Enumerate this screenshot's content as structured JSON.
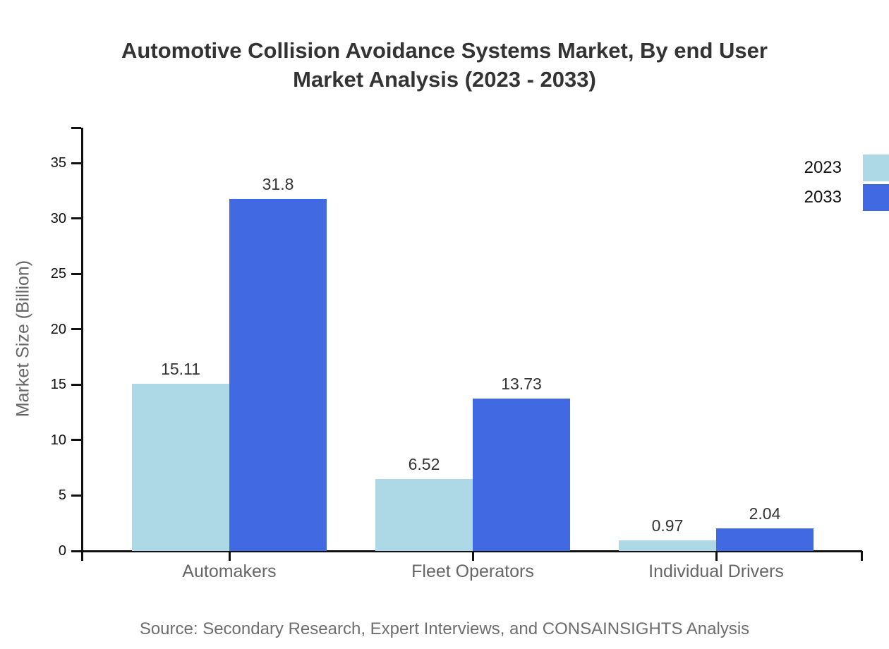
{
  "title": {
    "lines": [
      "Automotive Collision Avoidance Systems Market, By end User",
      "Market Analysis (2023 - 2033)"
    ]
  },
  "source_note": "Source: Secondary Research, Expert Interviews, and CONSAINSIGHTS Analysis",
  "colors": {
    "series_2023": "#ADD8E6",
    "series_2033": "#4169E1",
    "axis": "#111111",
    "title_text": "#333333",
    "muted_text": "#666666",
    "value_text": "#333333"
  },
  "chart_data": {
    "type": "bar",
    "title": "Automotive Collision Avoidance Systems Market, By end User Market Analysis (2023 - 2033)",
    "categories": [
      "Automakers",
      "Fleet Operators",
      "Individual Drivers"
    ],
    "series": [
      {
        "name": "2023",
        "color": "#ADD8E6",
        "values": [
          15.11,
          6.52,
          0.97
        ]
      },
      {
        "name": "2033",
        "color": "#4169E1",
        "values": [
          31.8,
          13.73,
          2.04
        ]
      }
    ],
    "data_labels": [
      [
        "15.11",
        "6.52",
        "0.97"
      ],
      [
        "31.8",
        "13.73",
        "2.04"
      ]
    ],
    "xlabel": "",
    "ylabel": "Market Size (Billion)",
    "yticks": [
      0,
      5,
      10,
      15,
      20,
      25,
      30,
      35
    ],
    "ylim": [
      0,
      38.2
    ],
    "grid": false,
    "legend": {
      "entries": [
        "2023",
        "2033"
      ],
      "position": "top-right"
    }
  }
}
